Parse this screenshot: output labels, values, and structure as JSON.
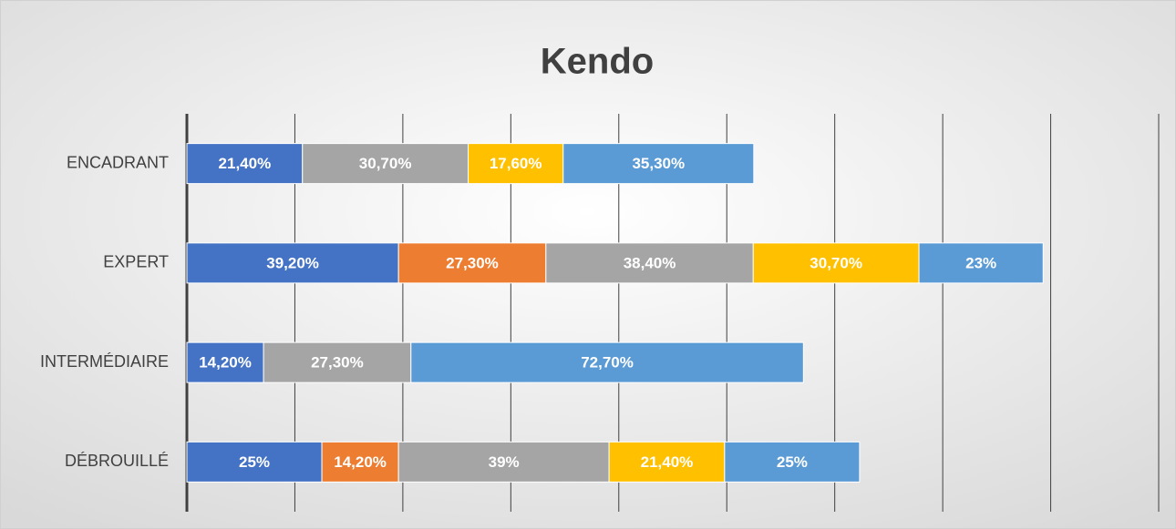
{
  "chart_data": {
    "type": "stacked-barh",
    "title": "Kendo",
    "categories": [
      "ENCADRANT",
      "EXPERT",
      "INTERMÉDIAIRE",
      "DÉBROUILLÉ"
    ],
    "series": [
      {
        "color": "#4472c4",
        "values": [
          21.4,
          39.2,
          14.2,
          25
        ],
        "value_labels": [
          "21,40%",
          "39,20%",
          "14,20%",
          "25%"
        ]
      },
      {
        "color": "#ed7d31",
        "values": [
          null,
          27.3,
          null,
          14.2
        ],
        "value_labels": [
          null,
          "27,30%",
          null,
          "14,20%"
        ]
      },
      {
        "color": "#a5a5a5",
        "values": [
          30.7,
          38.4,
          27.3,
          39
        ],
        "value_labels": [
          "30,70%",
          "38,40%",
          "27,30%",
          "39%"
        ]
      },
      {
        "color": "#ffc000",
        "values": [
          17.6,
          30.7,
          null,
          21.4
        ],
        "value_labels": [
          "17,60%",
          "30,70%",
          null,
          "21,40%"
        ]
      },
      {
        "color": "#5b9bd5",
        "values": [
          35.3,
          23,
          72.7,
          25
        ],
        "value_labels": [
          "35,30%",
          "23%",
          "72,70%",
          "25%"
        ]
      }
    ],
    "xlim": [
      0,
      180
    ],
    "xticks": [
      0,
      20,
      40,
      60,
      80,
      100,
      120,
      140,
      160,
      180
    ],
    "grid": true
  }
}
